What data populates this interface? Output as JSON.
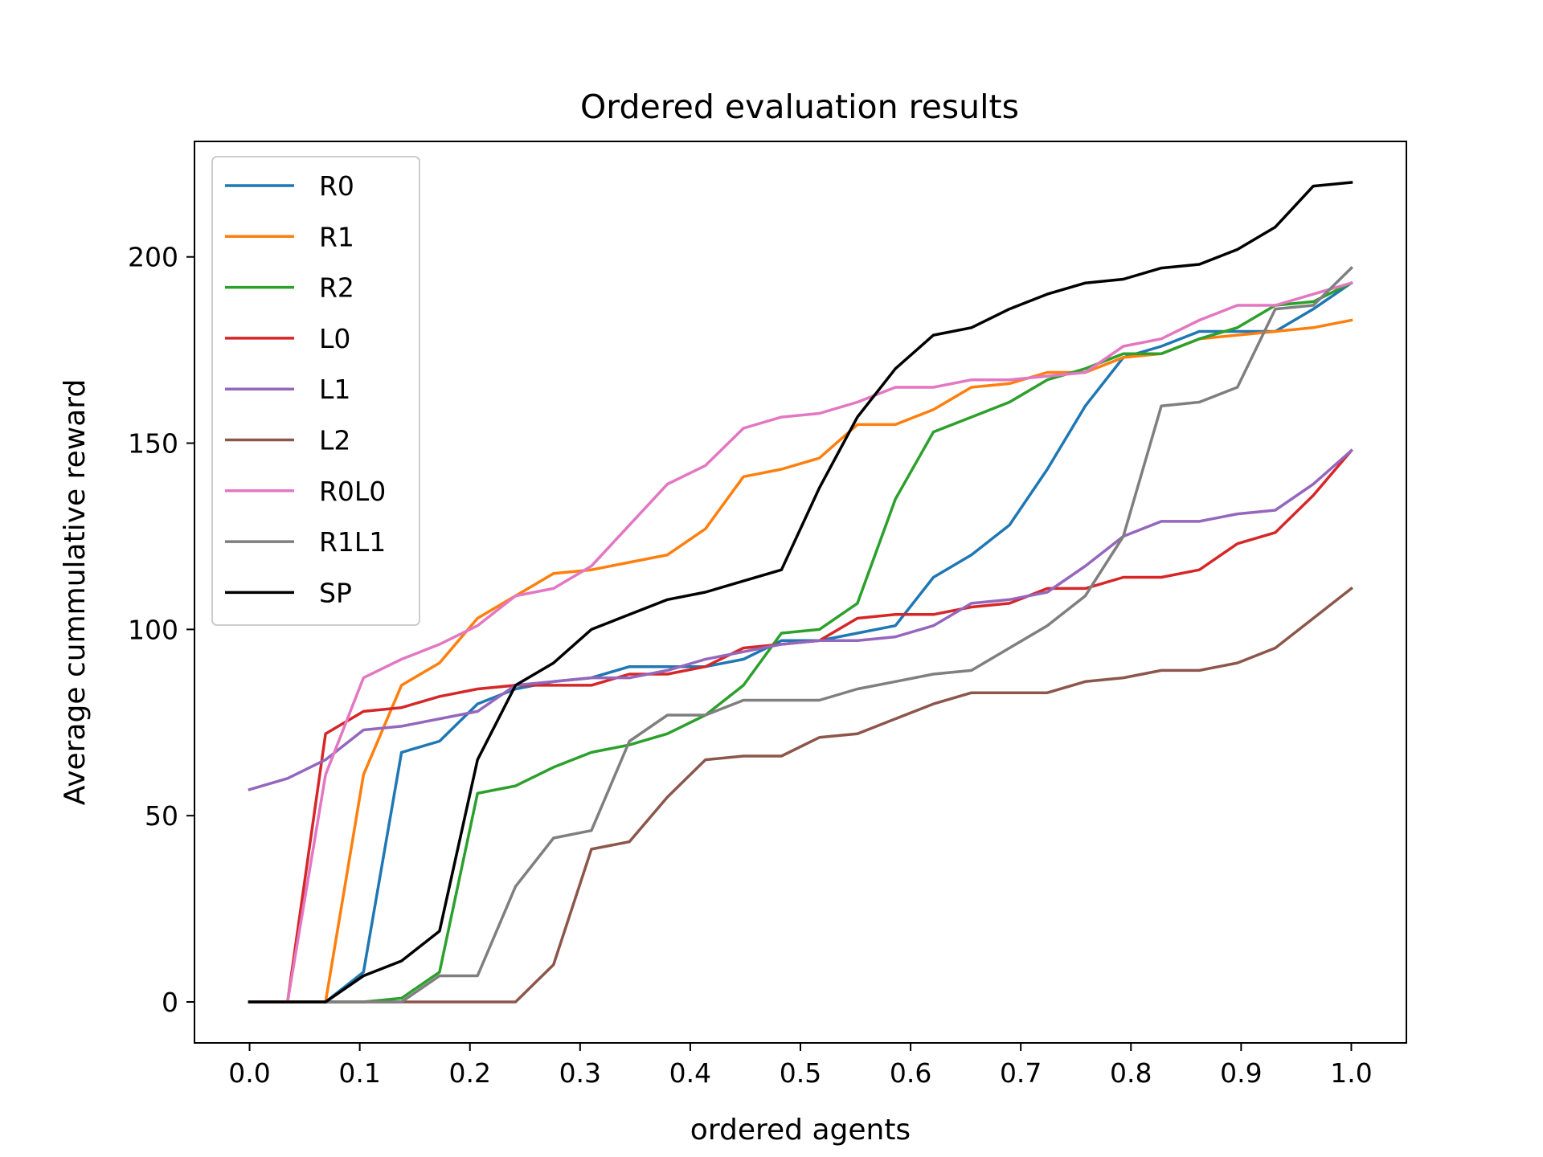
{
  "chart_data": {
    "type": "line",
    "title": "Ordered evaluation results",
    "xlabel": "ordered agents",
    "ylabel": "Average cummulative reward",
    "xlim": [
      -0.05,
      1.05
    ],
    "ylim": [
      -11,
      231
    ],
    "xticks": [
      0.0,
      0.1,
      0.2,
      0.3,
      0.4,
      0.5,
      0.6,
      0.7,
      0.8,
      0.9,
      1.0
    ],
    "xtick_labels": [
      "0.0",
      "0.1",
      "0.2",
      "0.3",
      "0.4",
      "0.5",
      "0.6",
      "0.7",
      "0.8",
      "0.9",
      "1.0"
    ],
    "yticks": [
      0,
      50,
      100,
      150,
      200
    ],
    "ytick_labels": [
      "0",
      "50",
      "100",
      "150",
      "200"
    ],
    "grid": false,
    "legend_position": "top-left",
    "x": [
      0.0,
      0.0345,
      0.069,
      0.1034,
      0.1379,
      0.1724,
      0.2069,
      0.2414,
      0.2759,
      0.3103,
      0.3448,
      0.3793,
      0.4138,
      0.4483,
      0.4828,
      0.5172,
      0.5517,
      0.5862,
      0.6207,
      0.6552,
      0.6897,
      0.7241,
      0.7586,
      0.7931,
      0.8276,
      0.8621,
      0.8966,
      0.931,
      0.9655,
      1.0
    ],
    "series": [
      {
        "name": "R0",
        "color": "#1f77b4",
        "values": [
          0,
          0,
          0,
          8,
          67,
          70,
          80,
          84,
          86,
          87,
          90,
          90,
          90,
          92,
          97,
          97,
          99,
          101,
          114,
          120,
          128,
          143,
          160,
          173,
          176,
          180,
          180,
          180,
          186,
          193
        ]
      },
      {
        "name": "R1",
        "color": "#ff7f0e",
        "values": [
          0,
          0,
          0,
          61,
          85,
          91,
          103,
          109,
          115,
          116,
          118,
          120,
          127,
          141,
          143,
          146,
          155,
          155,
          159,
          165,
          166,
          169,
          169,
          173,
          174,
          178,
          179,
          180,
          181,
          183
        ]
      },
      {
        "name": "R2",
        "color": "#2ca02c",
        "values": [
          0,
          0,
          0,
          0,
          1,
          8,
          56,
          58,
          63,
          67,
          69,
          72,
          77,
          85,
          99,
          100,
          107,
          135,
          153,
          157,
          161,
          167,
          170,
          174,
          174,
          178,
          181,
          187,
          188,
          193
        ]
      },
      {
        "name": "L0",
        "color": "#d62728",
        "values": [
          0,
          0,
          72,
          78,
          79,
          82,
          84,
          85,
          85,
          85,
          88,
          88,
          90,
          95,
          96,
          97,
          103,
          104,
          104,
          106,
          107,
          111,
          111,
          114,
          114,
          116,
          123,
          126,
          136,
          148
        ]
      },
      {
        "name": "L1",
        "color": "#9467bd",
        "values": [
          57,
          60,
          65,
          73,
          74,
          76,
          78,
          85,
          86,
          87,
          87,
          89,
          92,
          94,
          96,
          97,
          97,
          98,
          101,
          107,
          108,
          110,
          117,
          125,
          129,
          129,
          131,
          132,
          139,
          148
        ]
      },
      {
        "name": "L2",
        "color": "#8c564b",
        "values": [
          0,
          0,
          0,
          0,
          0,
          0,
          0,
          0,
          10,
          41,
          43,
          55,
          65,
          66,
          66,
          71,
          72,
          76,
          80,
          83,
          83,
          83,
          86,
          87,
          89,
          89,
          91,
          95,
          103,
          111
        ]
      },
      {
        "name": "R0L0",
        "color": "#e377c2",
        "values": [
          0,
          0,
          61,
          87,
          92,
          96,
          101,
          109,
          111,
          117,
          128,
          139,
          144,
          154,
          157,
          158,
          161,
          165,
          165,
          167,
          167,
          168,
          169,
          176,
          178,
          183,
          187,
          187,
          190,
          193
        ]
      },
      {
        "name": "R1L1",
        "color": "#7f7f7f",
        "values": [
          0,
          0,
          0,
          0,
          0,
          7,
          7,
          31,
          44,
          46,
          70,
          77,
          77,
          81,
          81,
          81,
          84,
          86,
          88,
          89,
          95,
          101,
          109,
          125,
          160,
          161,
          165,
          186,
          187,
          197
        ]
      },
      {
        "name": "SP",
        "color": "#000000",
        "values": [
          0,
          0,
          0,
          7,
          11,
          19,
          65,
          85,
          91,
          100,
          104,
          108,
          110,
          113,
          116,
          138,
          157,
          170,
          179,
          181,
          186,
          190,
          193,
          194,
          197,
          198,
          202,
          208,
          219,
          220
        ]
      }
    ]
  }
}
